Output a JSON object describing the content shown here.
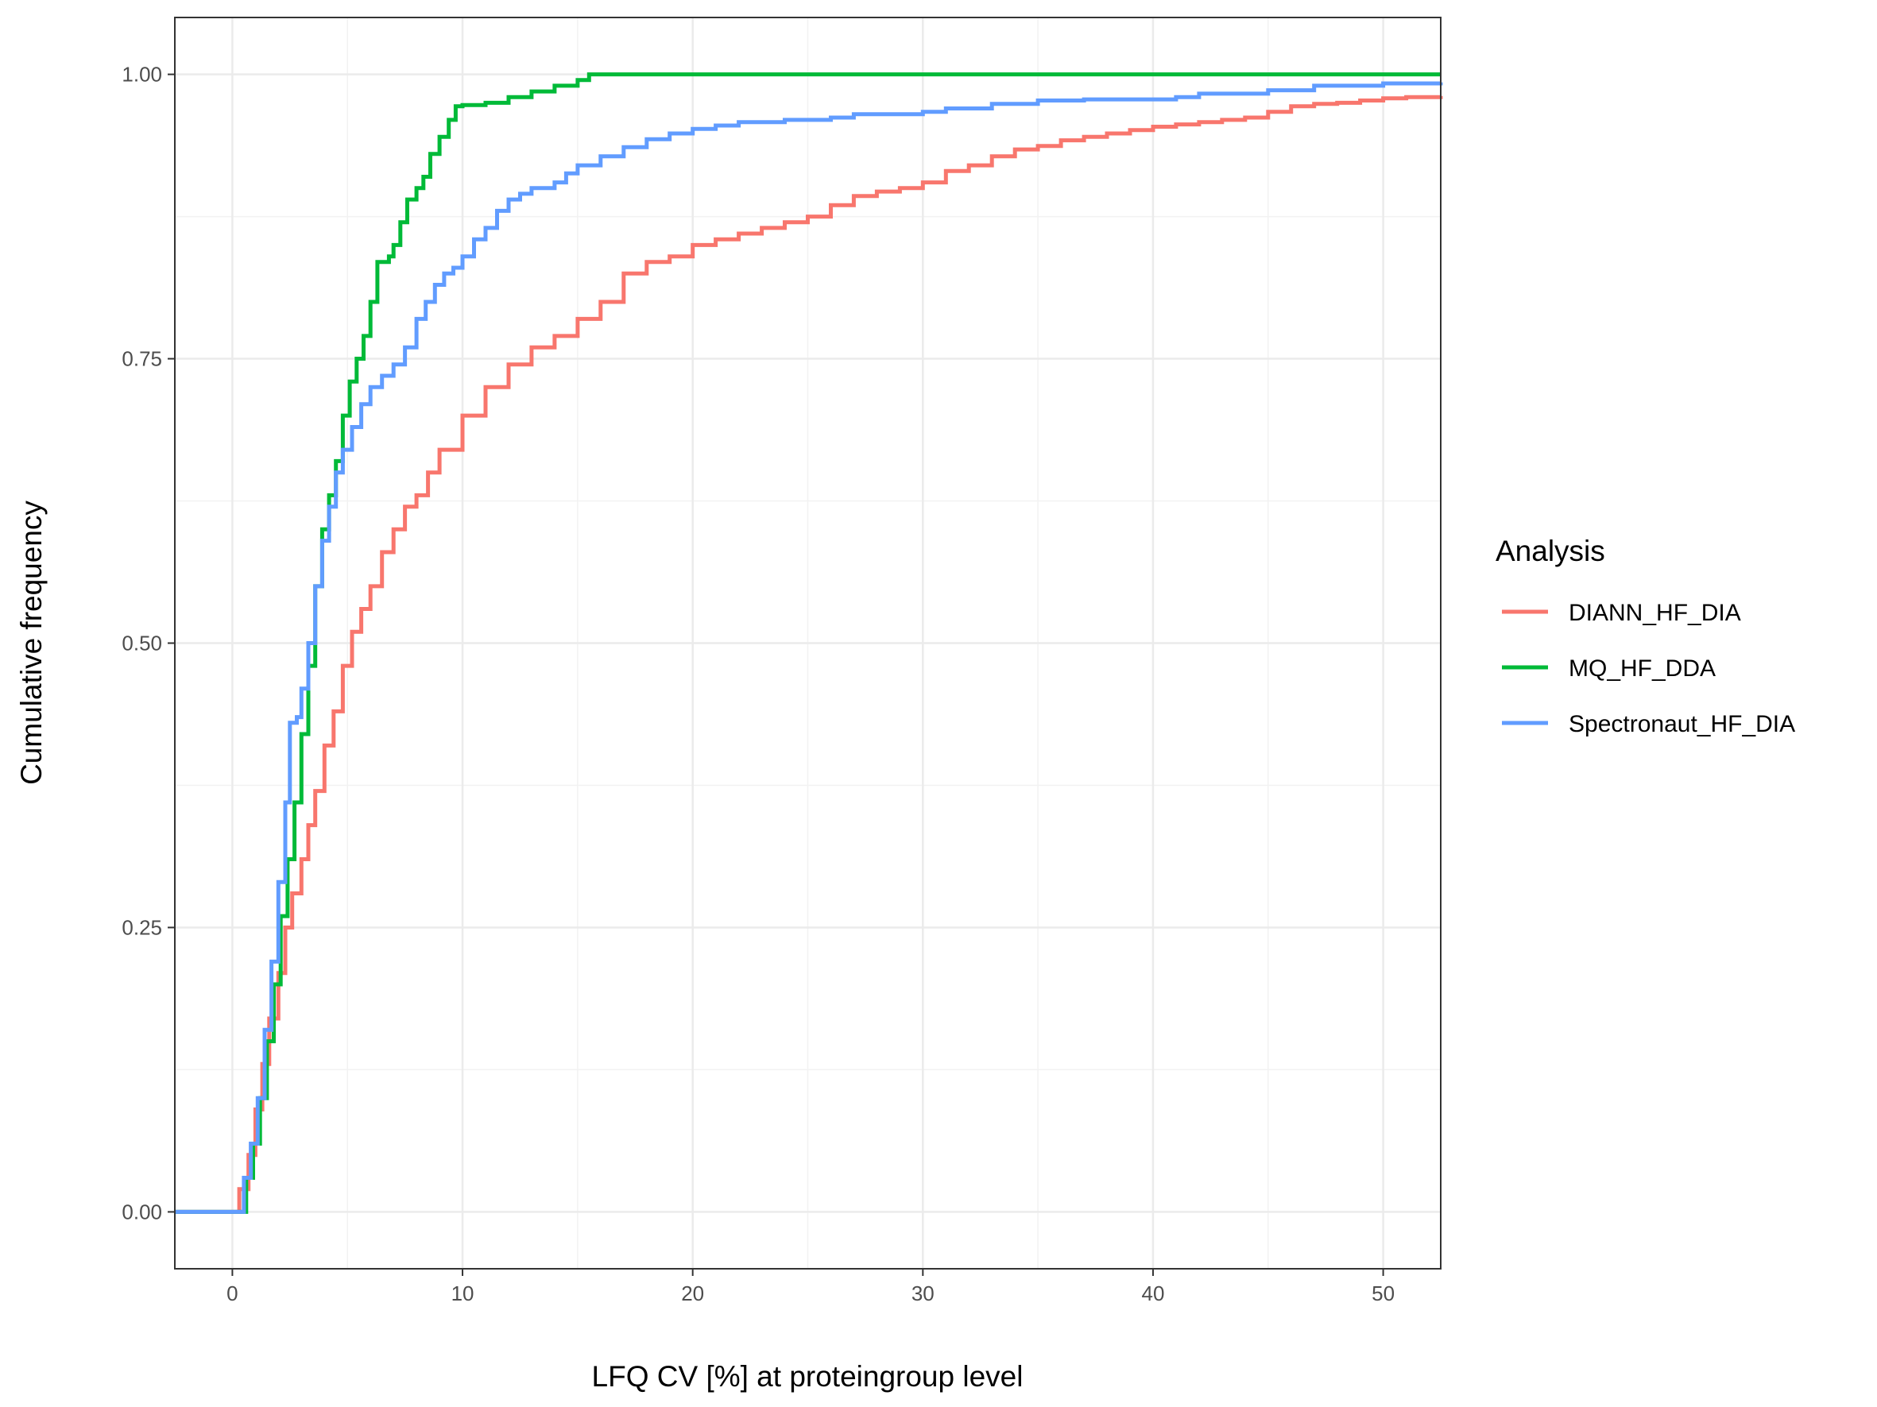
{
  "chart_data": {
    "type": "line",
    "step": true,
    "title": "",
    "xlabel": "LFQ CV [%] at proteingroup level",
    "ylabel": "Cumulative frequency",
    "xlim": [
      -2.5,
      52.5
    ],
    "ylim": [
      -0.05,
      1.05
    ],
    "x_ticks": [
      0,
      10,
      20,
      30,
      40,
      50
    ],
    "x_tick_labels": [
      "0",
      "10",
      "20",
      "30",
      "40",
      "50"
    ],
    "y_ticks": [
      0,
      0.25,
      0.5,
      0.75,
      1.0
    ],
    "y_tick_labels": [
      "0.00",
      "0.25",
      "0.50",
      "0.75",
      "1.00"
    ],
    "grid": true,
    "legend": {
      "title": "Analysis",
      "position": "right"
    },
    "series": [
      {
        "name": "DIANN_HF_DIA",
        "color": "#F8766D",
        "points": [
          [
            -2.5,
            0
          ],
          [
            0,
            0
          ],
          [
            0.3,
            0.02
          ],
          [
            0.7,
            0.05
          ],
          [
            1.0,
            0.09
          ],
          [
            1.3,
            0.13
          ],
          [
            1.6,
            0.17
          ],
          [
            2.0,
            0.21
          ],
          [
            2.3,
            0.25
          ],
          [
            2.6,
            0.28
          ],
          [
            3.0,
            0.31
          ],
          [
            3.3,
            0.34
          ],
          [
            3.6,
            0.37
          ],
          [
            4.0,
            0.41
          ],
          [
            4.4,
            0.44
          ],
          [
            4.8,
            0.48
          ],
          [
            5.2,
            0.51
          ],
          [
            5.6,
            0.53
          ],
          [
            6.0,
            0.55
          ],
          [
            6.5,
            0.58
          ],
          [
            7.0,
            0.6
          ],
          [
            7.5,
            0.62
          ],
          [
            8.0,
            0.63
          ],
          [
            8.5,
            0.65
          ],
          [
            9.0,
            0.67
          ],
          [
            10.0,
            0.7
          ],
          [
            11.0,
            0.725
          ],
          [
            12.0,
            0.745
          ],
          [
            13.0,
            0.76
          ],
          [
            14.0,
            0.77
          ],
          [
            15.0,
            0.785
          ],
          [
            16.0,
            0.8
          ],
          [
            17.0,
            0.825
          ],
          [
            18.0,
            0.835
          ],
          [
            19.0,
            0.84
          ],
          [
            20.0,
            0.85
          ],
          [
            21.0,
            0.855
          ],
          [
            22.0,
            0.86
          ],
          [
            23.0,
            0.865
          ],
          [
            24.0,
            0.87
          ],
          [
            25.0,
            0.875
          ],
          [
            26.0,
            0.885
          ],
          [
            27.0,
            0.893
          ],
          [
            28.0,
            0.897
          ],
          [
            29.0,
            0.9
          ],
          [
            30.0,
            0.905
          ],
          [
            31.0,
            0.915
          ],
          [
            32.0,
            0.92
          ],
          [
            33.0,
            0.928
          ],
          [
            34.0,
            0.934
          ],
          [
            35.0,
            0.937
          ],
          [
            36.0,
            0.942
          ],
          [
            37.0,
            0.945
          ],
          [
            38.0,
            0.948
          ],
          [
            39.0,
            0.951
          ],
          [
            40.0,
            0.954
          ],
          [
            41.0,
            0.956
          ],
          [
            42.0,
            0.958
          ],
          [
            43.0,
            0.96
          ],
          [
            44.0,
            0.962
          ],
          [
            45.0,
            0.967
          ],
          [
            46.0,
            0.972
          ],
          [
            47.0,
            0.974
          ],
          [
            48.0,
            0.975
          ],
          [
            49.0,
            0.977
          ],
          [
            50.0,
            0.979
          ],
          [
            51.0,
            0.98
          ],
          [
            52.5,
            0.981
          ]
        ]
      },
      {
        "name": "MQ_HF_DDA",
        "color": "#00BA38",
        "points": [
          [
            -2.5,
            0
          ],
          [
            0.3,
            0
          ],
          [
            0.6,
            0.03
          ],
          [
            0.9,
            0.06
          ],
          [
            1.2,
            0.1
          ],
          [
            1.5,
            0.15
          ],
          [
            1.8,
            0.2
          ],
          [
            2.1,
            0.26
          ],
          [
            2.4,
            0.31
          ],
          [
            2.7,
            0.36
          ],
          [
            3.0,
            0.42
          ],
          [
            3.3,
            0.48
          ],
          [
            3.6,
            0.55
          ],
          [
            3.9,
            0.6
          ],
          [
            4.2,
            0.63
          ],
          [
            4.5,
            0.66
          ],
          [
            4.8,
            0.7
          ],
          [
            5.1,
            0.73
          ],
          [
            5.4,
            0.75
          ],
          [
            5.7,
            0.77
          ],
          [
            6.0,
            0.8
          ],
          [
            6.3,
            0.835
          ],
          [
            6.8,
            0.84
          ],
          [
            7.0,
            0.85
          ],
          [
            7.3,
            0.87
          ],
          [
            7.6,
            0.89
          ],
          [
            8.0,
            0.9
          ],
          [
            8.3,
            0.91
          ],
          [
            8.6,
            0.93
          ],
          [
            9.0,
            0.945
          ],
          [
            9.4,
            0.96
          ],
          [
            9.7,
            0.972
          ],
          [
            10.0,
            0.973
          ],
          [
            11.0,
            0.975
          ],
          [
            12.0,
            0.98
          ],
          [
            13.0,
            0.985
          ],
          [
            14.0,
            0.99
          ],
          [
            15.0,
            0.995
          ],
          [
            15.5,
            1.0
          ],
          [
            52.5,
            1.0
          ]
        ]
      },
      {
        "name": "Spectronaut_HF_DIA",
        "color": "#619CFF",
        "points": [
          [
            -2.5,
            0
          ],
          [
            0.2,
            0
          ],
          [
            0.5,
            0.03
          ],
          [
            0.8,
            0.06
          ],
          [
            1.1,
            0.1
          ],
          [
            1.4,
            0.16
          ],
          [
            1.7,
            0.22
          ],
          [
            2.0,
            0.29
          ],
          [
            2.3,
            0.36
          ],
          [
            2.5,
            0.43
          ],
          [
            2.8,
            0.435
          ],
          [
            3.0,
            0.46
          ],
          [
            3.3,
            0.5
          ],
          [
            3.6,
            0.55
          ],
          [
            3.9,
            0.59
          ],
          [
            4.2,
            0.62
          ],
          [
            4.5,
            0.65
          ],
          [
            4.8,
            0.67
          ],
          [
            5.2,
            0.69
          ],
          [
            5.6,
            0.71
          ],
          [
            6.0,
            0.725
          ],
          [
            6.5,
            0.735
          ],
          [
            7.0,
            0.745
          ],
          [
            7.5,
            0.76
          ],
          [
            8.0,
            0.785
          ],
          [
            8.4,
            0.8
          ],
          [
            8.8,
            0.815
          ],
          [
            9.2,
            0.825
          ],
          [
            9.6,
            0.83
          ],
          [
            10.0,
            0.84
          ],
          [
            10.5,
            0.855
          ],
          [
            11.0,
            0.865
          ],
          [
            11.5,
            0.88
          ],
          [
            12.0,
            0.89
          ],
          [
            12.5,
            0.895
          ],
          [
            13.0,
            0.9
          ],
          [
            14.0,
            0.905
          ],
          [
            14.5,
            0.913
          ],
          [
            15.0,
            0.92
          ],
          [
            16.0,
            0.928
          ],
          [
            17.0,
            0.936
          ],
          [
            18.0,
            0.943
          ],
          [
            19.0,
            0.948
          ],
          [
            20.0,
            0.952
          ],
          [
            21.0,
            0.955
          ],
          [
            22.0,
            0.958
          ],
          [
            24.0,
            0.96
          ],
          [
            26.0,
            0.962
          ],
          [
            27.0,
            0.965
          ],
          [
            30.0,
            0.967
          ],
          [
            31.0,
            0.97
          ],
          [
            33.0,
            0.974
          ],
          [
            35.0,
            0.977
          ],
          [
            37.0,
            0.978
          ],
          [
            41.0,
            0.98
          ],
          [
            42.0,
            0.983
          ],
          [
            45.0,
            0.986
          ],
          [
            47.0,
            0.99
          ],
          [
            50.0,
            0.992
          ],
          [
            52.5,
            0.993
          ]
        ]
      }
    ]
  }
}
